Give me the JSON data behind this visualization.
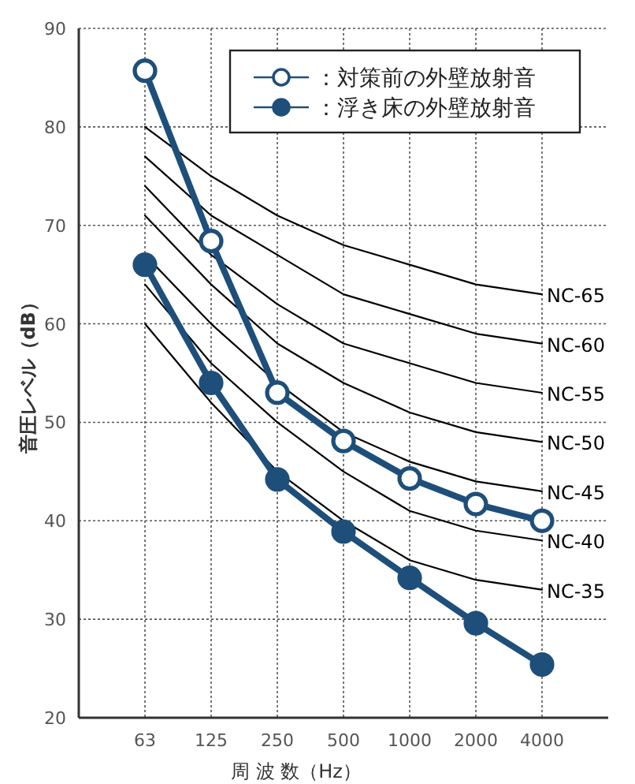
{
  "chart_data": {
    "type": "line",
    "xlabel": "周 波 数（Hz）",
    "ylabel": "音圧レベル（dB）",
    "categories": [
      "63",
      "125",
      "250",
      "500",
      "1000",
      "2000",
      "4000"
    ],
    "ylim": [
      20,
      90
    ],
    "yticks": [
      20,
      30,
      40,
      50,
      60,
      70,
      80,
      90
    ],
    "grid": true,
    "legend": "top right",
    "series": [
      {
        "name": "NC-65",
        "color": "#000000",
        "marker": "none",
        "values": [
          80,
          75,
          71,
          68,
          66,
          64,
          63
        ]
      },
      {
        "name": "NC-60",
        "color": "#000000",
        "marker": "none",
        "values": [
          77,
          71,
          67,
          63,
          61,
          59,
          58
        ]
      },
      {
        "name": "NC-55",
        "color": "#000000",
        "marker": "none",
        "values": [
          74,
          67,
          62,
          58,
          56,
          54,
          53
        ]
      },
      {
        "name": "NC-50",
        "color": "#000000",
        "marker": "none",
        "values": [
          71,
          64,
          58,
          54,
          51,
          49,
          48
        ]
      },
      {
        "name": "NC-45",
        "color": "#000000",
        "marker": "none",
        "values": [
          67,
          60,
          54,
          49,
          46,
          44,
          43
        ]
      },
      {
        "name": "NC-40",
        "color": "#000000",
        "marker": "none",
        "values": [
          64,
          56,
          50,
          45,
          41,
          39,
          38
        ]
      },
      {
        "name": "NC-35",
        "color": "#000000",
        "marker": "none",
        "values": [
          60,
          52,
          45,
          40,
          36,
          34,
          33
        ]
      },
      {
        "name": "：対策前の外壁放射音",
        "color": "#1e4f7a",
        "marker": "circle",
        "colors": [
          "#ffffff",
          "#ffffff",
          "#ffffff",
          "#ffffff",
          "#ffffff",
          "#ffffff",
          "#ffffff"
        ],
        "values": [
          85.7,
          68.4,
          53,
          48.1,
          44.3,
          41.7,
          40
        ]
      },
      {
        "name": "：浮き床の外壁放射音",
        "color": "#1e4f7a",
        "marker": "circle",
        "values": [
          66,
          54,
          44.2,
          38.9,
          34.2,
          29.6,
          25.4
        ]
      }
    ]
  }
}
